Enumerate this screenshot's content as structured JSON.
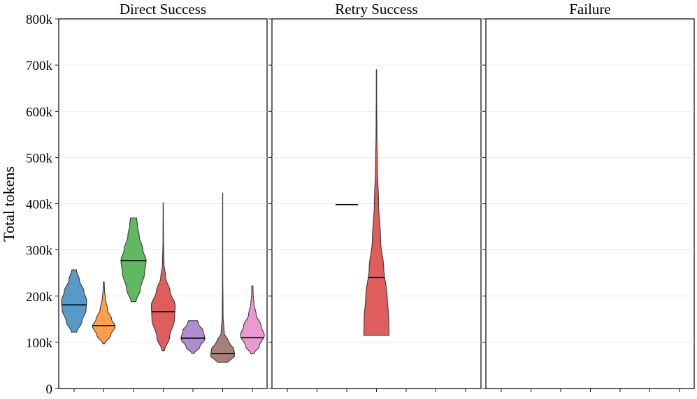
{
  "chart_data": {
    "type": "violin",
    "ylabel": "Total tokens",
    "ylim": [
      0,
      800000
    ],
    "ytick_values": [
      0,
      100000,
      200000,
      300000,
      400000,
      500000,
      600000,
      700000,
      800000
    ],
    "ytick_labels": [
      "0",
      "100k",
      "200k",
      "300k",
      "400k",
      "500k",
      "600k",
      "700k",
      "800k"
    ],
    "grid": true,
    "slots_per_panel": 7,
    "panels": [
      {
        "title": "Direct Success",
        "violins": [
          {
            "slot": 0,
            "color": "#1f77b4",
            "min": 122000,
            "max": 257000,
            "median": 181000,
            "profile": [
              [
                122000,
                0.22
              ],
              [
                145000,
                0.62
              ],
              [
                170000,
                0.95
              ],
              [
                190000,
                1.0
              ],
              [
                210000,
                0.78
              ],
              [
                235000,
                0.42
              ],
              [
                257000,
                0.18
              ]
            ]
          },
          {
            "slot": 1,
            "color": "#ff7f0e",
            "min": 97000,
            "max": 231000,
            "median": 136000,
            "profile": [
              [
                97000,
                0.08
              ],
              [
                115000,
                0.55
              ],
              [
                135000,
                0.9
              ],
              [
                150000,
                0.62
              ],
              [
                170000,
                0.3
              ],
              [
                195000,
                0.12
              ],
              [
                215000,
                0.05
              ],
              [
                231000,
                0.03
              ]
            ]
          },
          {
            "slot": 2,
            "color": "#2ca02c",
            "min": 188000,
            "max": 369000,
            "median": 277000,
            "profile": [
              [
                188000,
                0.2
              ],
              [
                215000,
                0.55
              ],
              [
                250000,
                0.88
              ],
              [
                277000,
                1.0
              ],
              [
                300000,
                0.75
              ],
              [
                330000,
                0.45
              ],
              [
                355000,
                0.3
              ],
              [
                369000,
                0.25
              ]
            ]
          },
          {
            "slot": 3,
            "color": "#d62728",
            "min": 82000,
            "max": 402000,
            "median": 166000,
            "profile": [
              [
                82000,
                0.1
              ],
              [
                110000,
                0.5
              ],
              [
                150000,
                0.9
              ],
              [
                180000,
                0.95
              ],
              [
                210000,
                0.55
              ],
              [
                240000,
                0.2
              ],
              [
                270000,
                0.06
              ],
              [
                320000,
                0.02
              ],
              [
                402000,
                0.01
              ]
            ]
          },
          {
            "slot": 4,
            "color": "#9467bd",
            "min": 76000,
            "max": 147000,
            "median": 109000,
            "profile": [
              [
                76000,
                0.1
              ],
              [
                90000,
                0.55
              ],
              [
                108000,
                0.95
              ],
              [
                125000,
                0.8
              ],
              [
                140000,
                0.45
              ],
              [
                147000,
                0.35
              ]
            ]
          },
          {
            "slot": 5,
            "color": "#8c564b",
            "min": 57000,
            "max": 423000,
            "median": 76000,
            "profile": [
              [
                57000,
                0.4
              ],
              [
                70000,
                0.95
              ],
              [
                85000,
                0.9
              ],
              [
                100000,
                0.5
              ],
              [
                120000,
                0.12
              ],
              [
                160000,
                0.03
              ],
              [
                250000,
                0.01
              ],
              [
                423000,
                0.005
              ]
            ]
          },
          {
            "slot": 6,
            "color": "#e377c2",
            "min": 75000,
            "max": 222000,
            "median": 110000,
            "profile": [
              [
                75000,
                0.12
              ],
              [
                92000,
                0.55
              ],
              [
                115000,
                0.95
              ],
              [
                135000,
                0.7
              ],
              [
                160000,
                0.3
              ],
              [
                185000,
                0.12
              ],
              [
                205000,
                0.06
              ],
              [
                222000,
                0.05
              ]
            ]
          }
        ],
        "single_values": []
      },
      {
        "title": "Retry Success",
        "violins": [
          {
            "slot": 3,
            "color": "#d62728",
            "min": 115000,
            "max": 690000,
            "median": 240000,
            "profile": [
              [
                115000,
                1.0
              ],
              [
                150000,
                0.98
              ],
              [
                200000,
                0.85
              ],
              [
                260000,
                0.58
              ],
              [
                320000,
                0.33
              ],
              [
                400000,
                0.17
              ],
              [
                480000,
                0.07
              ],
              [
                560000,
                0.03
              ],
              [
                640000,
                0.015
              ],
              [
                690000,
                0.012
              ]
            ]
          }
        ],
        "single_values": [
          {
            "slot": 2,
            "value": 398000
          }
        ]
      },
      {
        "title": "Failure",
        "violins": [],
        "single_values": []
      }
    ]
  }
}
